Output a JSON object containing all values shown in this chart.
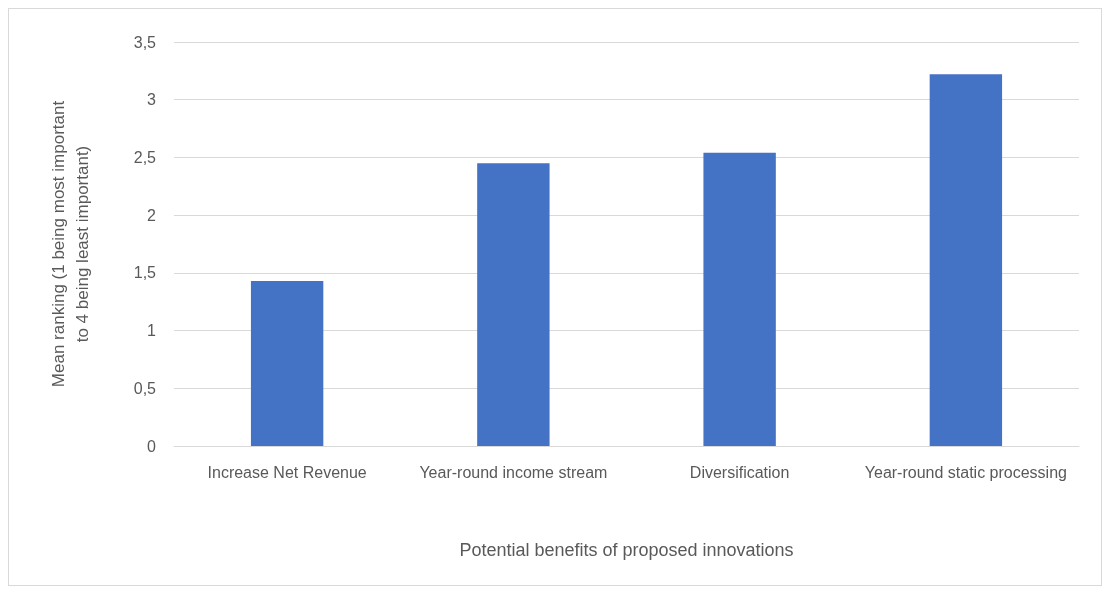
{
  "chart_data": {
    "type": "bar",
    "xlabel": "Potential benefits of proposed innovations",
    "ylabel": "Mean ranking (1 being most important to 4 being least important)",
    "categories": [
      "Increase Net Revenue",
      "Year-round income stream",
      "Diversification",
      "Year-round static processing"
    ],
    "values": [
      1.43,
      2.45,
      2.54,
      3.22
    ],
    "color": "#4472c4",
    "ylim": [
      0,
      3.5
    ],
    "yticks": [
      0,
      {
        "value": 0.5,
        "label": "0,5"
      },
      1,
      {
        "value": 1.5,
        "label": "1,5"
      },
      2,
      {
        "value": 2.5,
        "label": "2,5"
      },
      3,
      {
        "value": 3.5,
        "label": "3,5"
      }
    ],
    "grid": "y"
  }
}
